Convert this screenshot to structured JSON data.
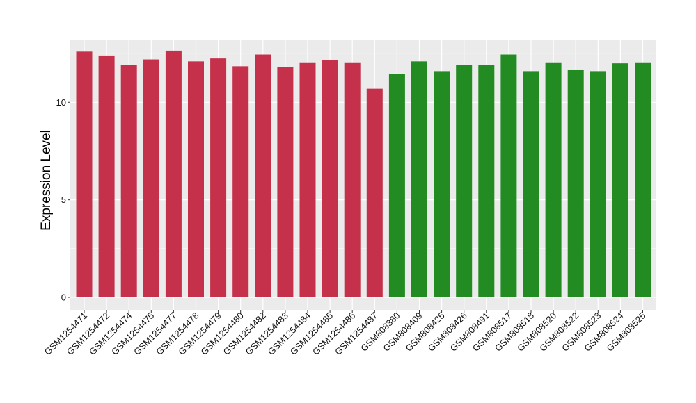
{
  "chart_data": {
    "type": "bar",
    "title": "",
    "xlabel": "",
    "ylabel": "Expression Level",
    "ylim": [
      0,
      13.0
    ],
    "yticks": [
      0,
      5,
      10
    ],
    "grid": true,
    "legend": "none",
    "colors": {
      "group1": "#c5304a",
      "group2": "#228b22",
      "panel_bg": "#ebebeb",
      "grid": "#ffffff"
    },
    "categories": [
      "GSM1254471",
      "GSM1254472",
      "GSM1254474",
      "GSM1254475",
      "GSM1254477",
      "GSM1254478",
      "GSM1254479",
      "GSM1254480",
      "GSM1254482",
      "GSM1254483",
      "GSM1254484",
      "GSM1254485",
      "GSM1254486",
      "GSM1254487",
      "GSM808380",
      "GSM808409",
      "GSM808425",
      "GSM808426",
      "GSM808491",
      "GSM808517",
      "GSM808518",
      "GSM808520",
      "GSM808522",
      "GSM808523",
      "GSM808524",
      "GSM808525"
    ],
    "values": [
      12.6,
      12.4,
      11.9,
      12.2,
      12.65,
      12.1,
      12.25,
      11.85,
      12.45,
      11.8,
      12.05,
      12.15,
      12.05,
      10.7,
      11.45,
      12.1,
      11.6,
      11.9,
      11.9,
      12.45,
      11.6,
      12.05,
      11.65,
      11.6,
      12.0,
      12.05
    ],
    "groups": [
      0,
      0,
      0,
      0,
      0,
      0,
      0,
      0,
      0,
      0,
      0,
      0,
      0,
      0,
      1,
      1,
      1,
      1,
      1,
      1,
      1,
      1,
      1,
      1,
      1,
      1
    ]
  }
}
